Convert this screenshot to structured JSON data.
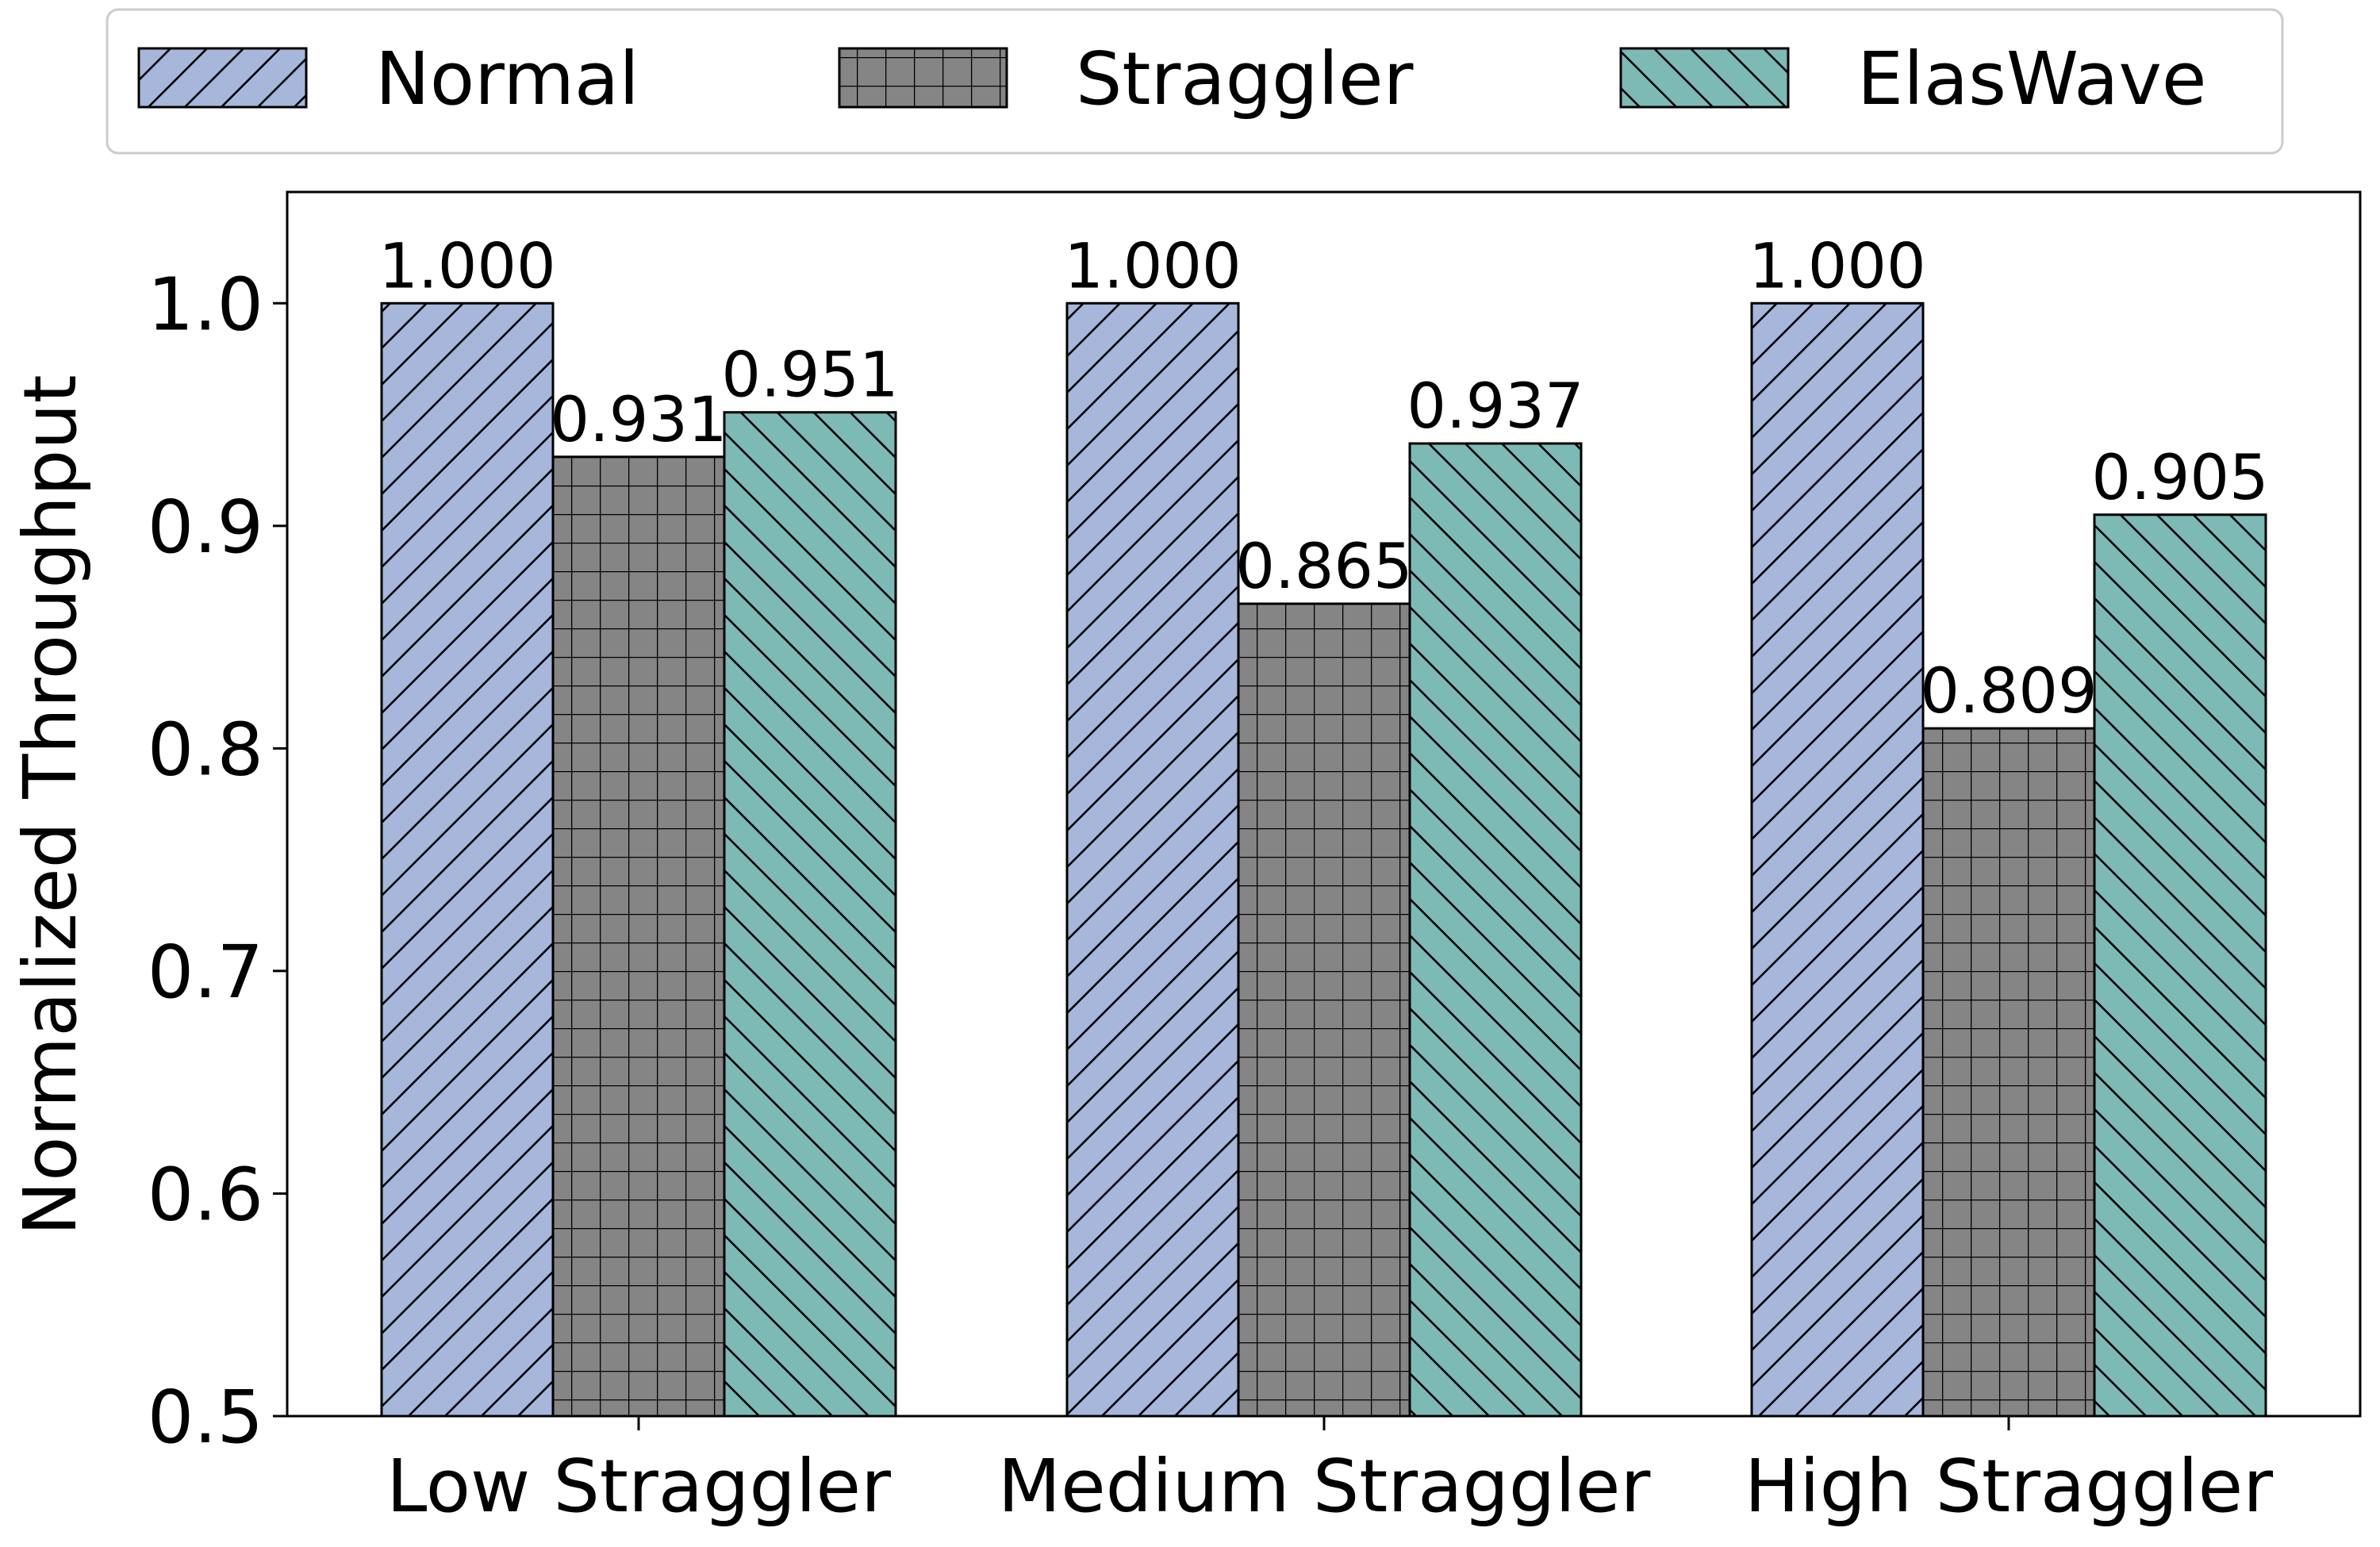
{
  "chart_data": {
    "type": "bar",
    "title": "",
    "xlabel": "",
    "ylabel": "Normalized Throughput",
    "ylim": [
      0.5,
      1.05
    ],
    "yticks": [
      "0.5",
      "0.6",
      "0.7",
      "0.8",
      "0.9",
      "1.0"
    ],
    "grid": false,
    "legend_position": "top-center",
    "categories": [
      "Low Straggler",
      "Medium Straggler",
      "High Straggler"
    ],
    "series": [
      {
        "name": "Normal",
        "values": [
          1.0,
          1.0,
          1.0
        ],
        "labels": [
          "1.000",
          "1.000",
          "1.000"
        ],
        "color": "#a6b7db",
        "hatch": "forward-diagonal"
      },
      {
        "name": "Straggler",
        "values": [
          0.931,
          0.865,
          0.809
        ],
        "labels": [
          "0.931",
          "0.865",
          "0.809"
        ],
        "color": "#858585",
        "hatch": "grid"
      },
      {
        "name": "ElasWave",
        "values": [
          0.951,
          0.937,
          0.905
        ],
        "labels": [
          "0.951",
          "0.937",
          "0.905"
        ],
        "color": "#7dbab6",
        "hatch": "back-diagonal"
      }
    ]
  }
}
